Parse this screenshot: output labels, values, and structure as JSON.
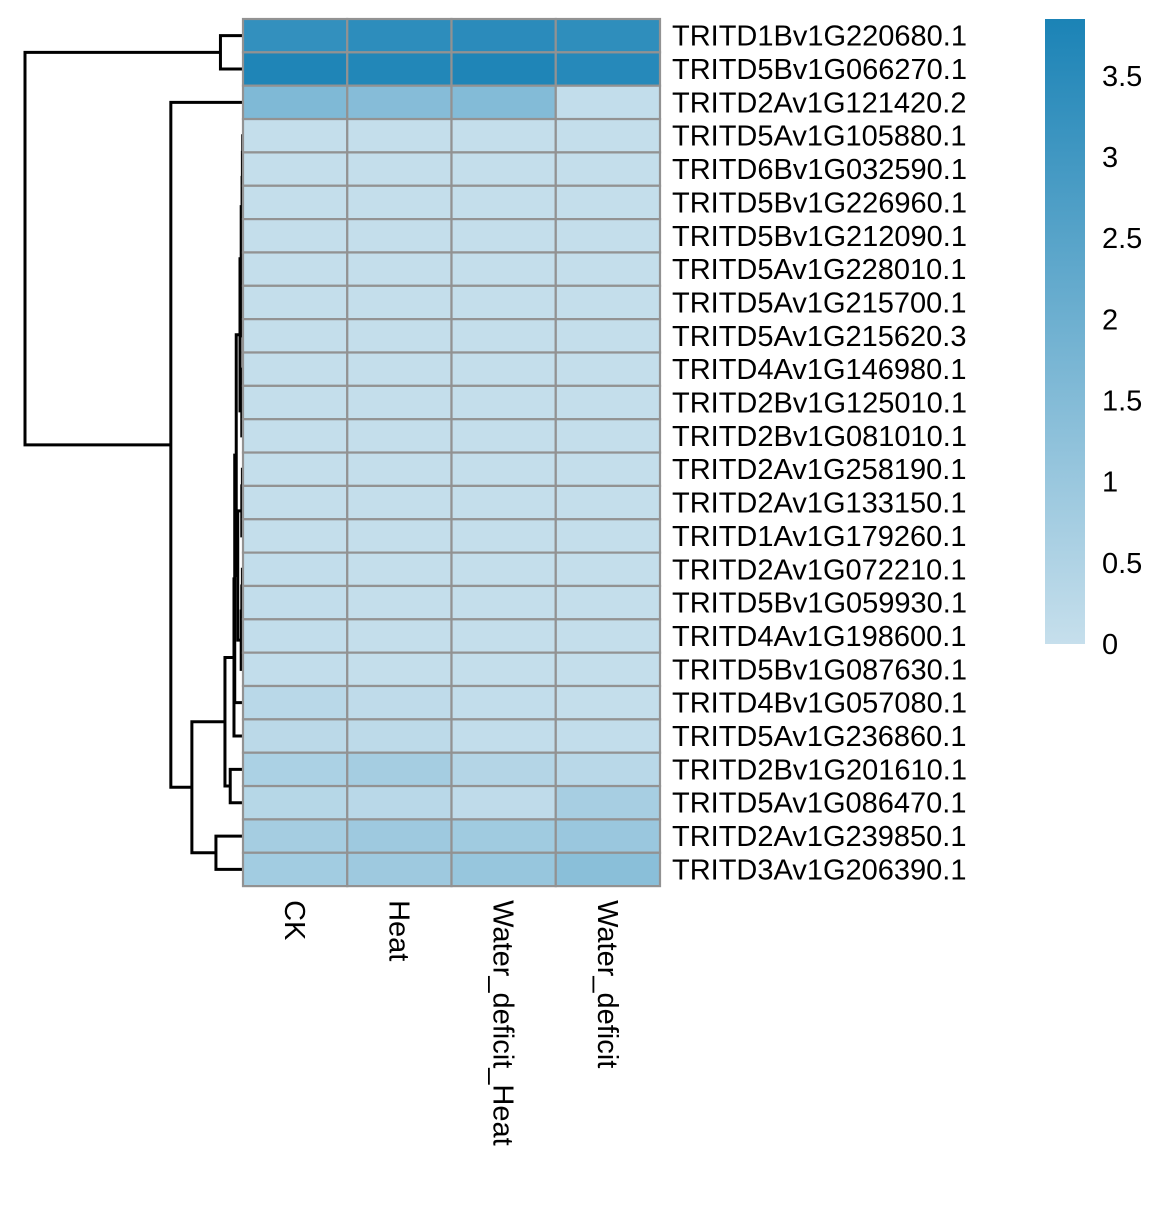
{
  "chart_data": {
    "type": "heatmap",
    "title": "",
    "xlabel": "",
    "ylabel": "",
    "columns": [
      "CK",
      "Heat",
      "Water_deficit_Heat",
      "Water_deficit"
    ],
    "rows": [
      "TRITD1Bv1G220680.1",
      "TRITD5Bv1G066270.1",
      "TRITD2Av1G121420.2",
      "TRITD5Av1G105880.1",
      "TRITD6Bv1G032590.1",
      "TRITD5Bv1G226960.1",
      "TRITD5Bv1G212090.1",
      "TRITD5Av1G228010.1",
      "TRITD5Av1G215700.1",
      "TRITD5Av1G215620.3",
      "TRITD4Av1G146980.1",
      "TRITD2Bv1G125010.1",
      "TRITD2Bv1G081010.1",
      "TRITD2Av1G258190.1",
      "TRITD2Av1G133150.1",
      "TRITD1Av1G179260.1",
      "TRITD2Av1G072210.1",
      "TRITD5Bv1G059930.1",
      "TRITD4Av1G198600.1",
      "TRITD5Bv1G087630.1",
      "TRITD4Bv1G057080.1",
      "TRITD5Av1G236860.1",
      "TRITD2Bv1G201610.1",
      "TRITD5Av1G086470.1",
      "TRITD2Av1G239850.1",
      "TRITD3Av1G206390.1"
    ],
    "values": [
      [
        3.3,
        3.45,
        3.5,
        3.4
      ],
      [
        3.75,
        3.7,
        3.75,
        3.6
      ],
      [
        1.6,
        1.45,
        1.5,
        0.1
      ],
      [
        0.05,
        0.05,
        0.05,
        0.05
      ],
      [
        0.05,
        0.05,
        0.05,
        0.05
      ],
      [
        0.05,
        0.05,
        0.05,
        0.05
      ],
      [
        0.05,
        0.05,
        0.05,
        0.05
      ],
      [
        0.05,
        0.05,
        0.05,
        0.05
      ],
      [
        0.05,
        0.05,
        0.05,
        0.05
      ],
      [
        0.05,
        0.05,
        0.05,
        0.05
      ],
      [
        0.05,
        0.05,
        0.05,
        0.05
      ],
      [
        0.05,
        0.05,
        0.05,
        0.05
      ],
      [
        0.05,
        0.05,
        0.05,
        0.05
      ],
      [
        0.05,
        0.05,
        0.05,
        0.05
      ],
      [
        0.05,
        0.05,
        0.05,
        0.05
      ],
      [
        0.05,
        0.05,
        0.05,
        0.05
      ],
      [
        0.1,
        0.05,
        0.05,
        0.05
      ],
      [
        0.1,
        0.05,
        0.05,
        0.05
      ],
      [
        0.1,
        0.05,
        0.05,
        0.05
      ],
      [
        0.1,
        0.05,
        0.05,
        0.05
      ],
      [
        0.3,
        0.15,
        0.1,
        0.05
      ],
      [
        0.25,
        0.2,
        0.1,
        0.1
      ],
      [
        0.6,
        0.75,
        0.4,
        0.3
      ],
      [
        0.35,
        0.3,
        0.15,
        0.7
      ],
      [
        0.75,
        0.9,
        0.85,
        1.0
      ],
      [
        0.8,
        0.9,
        1.05,
        1.35
      ]
    ],
    "colorbar": {
      "min": 0,
      "max": 3.85,
      "ticks": [
        0,
        0.5,
        1,
        1.5,
        2,
        2.5,
        3,
        3.5
      ],
      "tick_labels": [
        "0",
        "0.5",
        "1",
        "1.5",
        "2",
        "2.5",
        "3",
        "3.5"
      ],
      "color_low": "#c6dfec",
      "color_high": "#1b83b6"
    },
    "cell_border_color": "#929292",
    "dendrogram_color": "#000000",
    "row_dendrogram": {
      "labels": [
        "r0",
        "r1",
        "r2",
        "r3",
        "r4",
        "r5",
        "r6",
        "r7",
        "r8",
        "r9",
        "r10",
        "r11",
        "r12",
        "r13",
        "r14",
        "r15",
        "r16",
        "r17",
        "r18",
        "r19",
        "r20",
        "r21",
        "r22",
        "r23",
        "r24",
        "r25"
      ],
      "merges": [
        {
          "id": "m01",
          "a": "r0",
          "b": "r1",
          "height": 0.15
        },
        {
          "id": "m02",
          "a": "r3",
          "b": "r4",
          "height": 0.002
        },
        {
          "id": "m03",
          "a": "m02",
          "b": "r5",
          "height": 0.004
        },
        {
          "id": "m04",
          "a": "m03",
          "b": "r6",
          "height": 0.006
        },
        {
          "id": "m05",
          "a": "r7",
          "b": "r8",
          "height": 0.003
        },
        {
          "id": "m06",
          "a": "m05",
          "b": "r9",
          "height": 0.006
        },
        {
          "id": "m07",
          "a": "m04",
          "b": "m06",
          "height": 0.012
        },
        {
          "id": "m08",
          "a": "r10",
          "b": "r11",
          "height": 0.004
        },
        {
          "id": "m09",
          "a": "m08",
          "b": "r12",
          "height": 0.008
        },
        {
          "id": "m10",
          "a": "m07",
          "b": "m09",
          "height": 0.02
        },
        {
          "id": "m11",
          "a": "r13",
          "b": "r14",
          "height": 0.004
        },
        {
          "id": "m12",
          "a": "m11",
          "b": "r15",
          "height": 0.008
        },
        {
          "id": "m13",
          "a": "r16",
          "b": "r17",
          "height": 0.004
        },
        {
          "id": "m14",
          "a": "m13",
          "b": "r18",
          "height": 0.008
        },
        {
          "id": "m15",
          "a": "m14",
          "b": "r19",
          "height": 0.012
        },
        {
          "id": "m16",
          "a": "m12",
          "b": "m15",
          "height": 0.035
        },
        {
          "id": "m17",
          "a": "m10",
          "b": "m16",
          "height": 0.045
        },
        {
          "id": "m18",
          "a": "m17",
          "b": "r20",
          "height": 0.055
        },
        {
          "id": "m19",
          "a": "m18",
          "b": "r21",
          "height": 0.06
        },
        {
          "id": "m20",
          "a": "r22",
          "b": "r23",
          "height": 0.085
        },
        {
          "id": "m21",
          "a": "m19",
          "b": "m20",
          "height": 0.12
        },
        {
          "id": "m22",
          "a": "r24",
          "b": "r25",
          "height": 0.18
        },
        {
          "id": "m23",
          "a": "m21",
          "b": "m22",
          "height": 0.34
        },
        {
          "id": "m24",
          "a": "r2",
          "b": "m23",
          "height": 0.48
        },
        {
          "id": "m25",
          "a": "m01",
          "b": "m24",
          "height": 1.45
        }
      ]
    }
  }
}
